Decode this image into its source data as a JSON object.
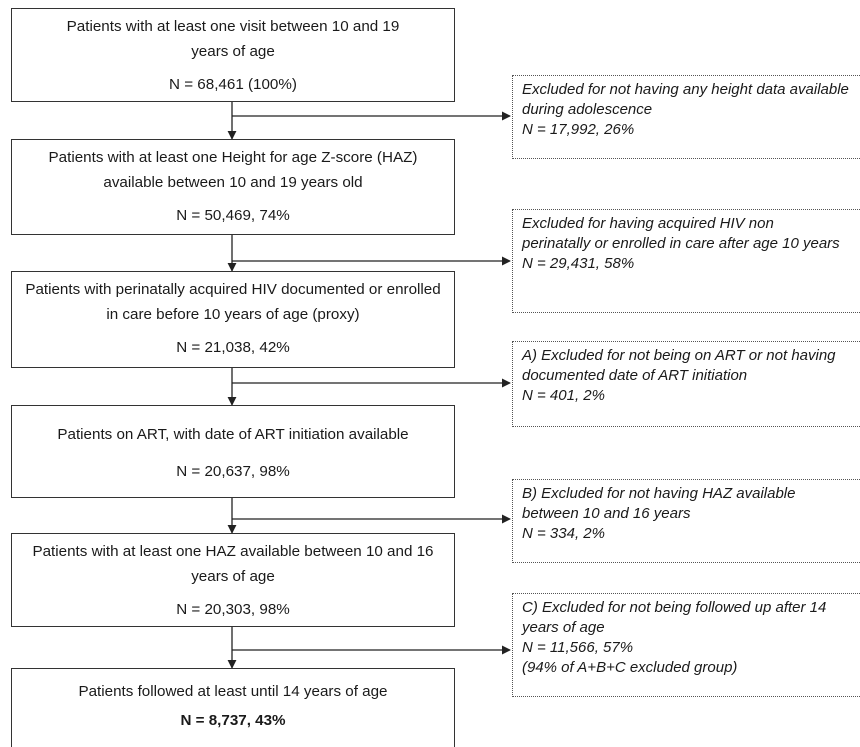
{
  "flow": {
    "boxes": [
      {
        "text": "Patients with at least one visit between 10 and 19 years of age",
        "n": "N = 68,461 (100%)"
      },
      {
        "text": "Patients with at least one Height for age Z-score (HAZ) available between 10 and 19 years old",
        "n": "N = 50,469, 74%"
      },
      {
        "text": "Patients with perinatally acquired HIV documented or enrolled in care before 10 years of age (proxy)",
        "n": "N = 21,038, 42%"
      },
      {
        "text": "Patients on ART, with date of ART initiation available",
        "n": "N = 20,637, 98%"
      },
      {
        "text": "Patients with at least one HAZ available between 10 and 16 years of age",
        "n": "N = 20,303, 98%"
      },
      {
        "text": "Patients followed at least until 14 years of age",
        "n": "N = 8,737, 43%"
      }
    ],
    "exclusions": [
      {
        "text": "Excluded for not having any height data available during adolescence",
        "n": "N = 17,992, 26%"
      },
      {
        "text": "Excluded for having acquired HIV non perinatally or enrolled in care after age 10 years",
        "n": "N = 29,431, 58%"
      },
      {
        "text": "A) Excluded for not being on ART or not having documented date of ART initiation",
        "n": "N = 401, 2%"
      },
      {
        "text": "B) Excluded for not having HAZ available between 10 and 16 years",
        "n": "N = 334, 2%"
      },
      {
        "text": "C) Excluded for not being followed up after 14 years of age",
        "n": "N = 11,566, 57%",
        "note": "(94% of A+B+C excluded group)"
      }
    ]
  }
}
